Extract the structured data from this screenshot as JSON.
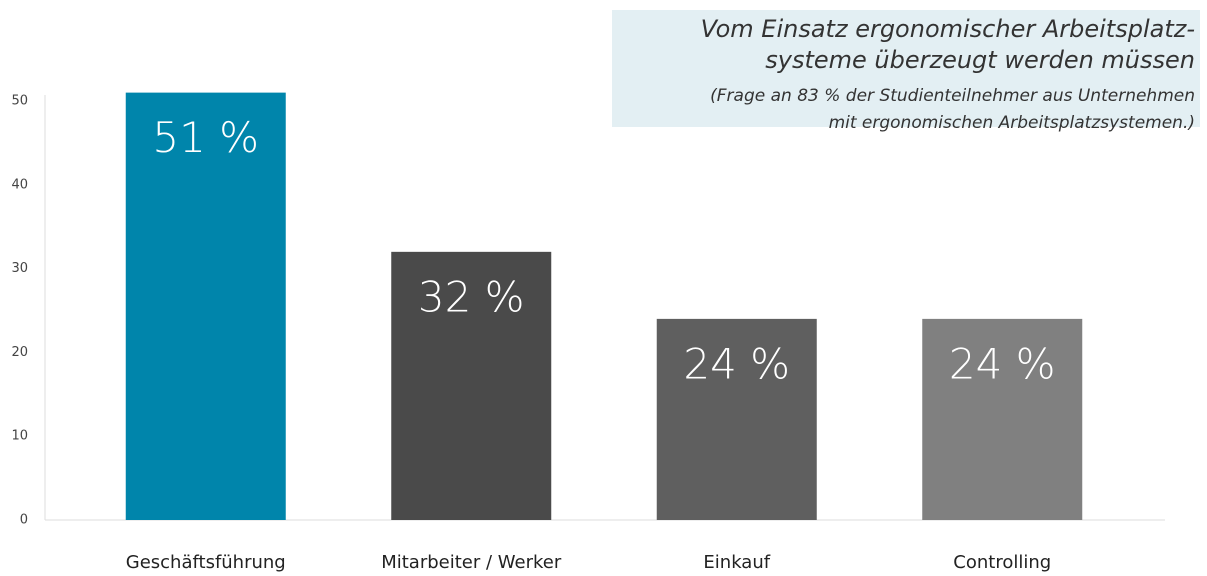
{
  "chart_data": {
    "type": "bar",
    "title": [
      "Vom Einsatz ergonomischer Arbeitsplatz-",
      "systeme überzeugt werden müssen"
    ],
    "subtitle": [
      "(Frage an 83 % der Studienteilnehmer aus Unternehmen",
      "mit ergonomischen Arbeitsplatzsystemen.)"
    ],
    "categories": [
      "Geschäftsführung",
      "Mitarbeiter / Werker",
      "Einkauf",
      "Controlling"
    ],
    "values": [
      51,
      32,
      24,
      24
    ],
    "value_labels": [
      "51 %",
      "32 %",
      "24 %",
      "24 %"
    ],
    "colors": [
      "#0085ab",
      "#4a4a4a",
      "#5f5f5f",
      "#808080"
    ],
    "ylim": [
      0,
      50
    ],
    "yticks": [
      0,
      10,
      20,
      30,
      40,
      50
    ],
    "grid": false
  }
}
